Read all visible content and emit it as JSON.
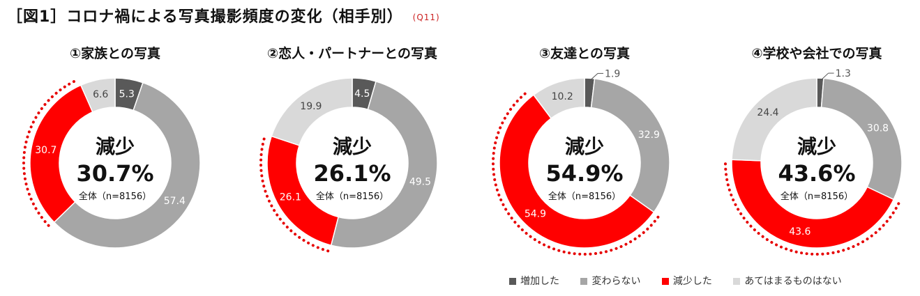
{
  "title": "［図1］コロナ禍による写真撮影頻度の変化（相手別）",
  "question_code": "(Q11)",
  "colors": {
    "increase": "#595959",
    "no_change": "#a6a6a6",
    "decrease": "#ff0000",
    "not_applicable": "#d9d9d9",
    "dots": "#e60000"
  },
  "legend": [
    "増加した",
    "変わらない",
    "減少した",
    "あてはまるものはない"
  ],
  "chart_data": [
    {
      "type": "pie",
      "title": "①家族との写真",
      "categories": [
        "増加した",
        "変わらない",
        "減少した",
        "あてはまるものはない"
      ],
      "values": [
        5.3,
        57.4,
        30.7,
        6.6
      ],
      "center_label": "減少",
      "center_value": "30.7%",
      "base": "全体（n=8156）"
    },
    {
      "type": "pie",
      "title": "②恋人・パートナーとの写真",
      "categories": [
        "増加した",
        "変わらない",
        "減少した",
        "あてはまるものはない"
      ],
      "values": [
        4.5,
        49.5,
        26.1,
        19.9
      ],
      "center_label": "減少",
      "center_value": "26.1%",
      "base": "全体（n=8156）"
    },
    {
      "type": "pie",
      "title": "③友達との写真",
      "categories": [
        "増加した",
        "変わらない",
        "減少した",
        "あてはまるものはない"
      ],
      "values": [
        1.9,
        32.9,
        54.9,
        10.2
      ],
      "center_label": "減少",
      "center_value": "54.9%",
      "base": "全体（n=8156）"
    },
    {
      "type": "pie",
      "title": "④学校や会社での写真",
      "categories": [
        "増加した",
        "変わらない",
        "減少した",
        "あてはまるものはない"
      ],
      "values": [
        1.3,
        30.8,
        43.6,
        24.4
      ],
      "center_label": "減少",
      "center_value": "43.6%",
      "base": "全体（n=8156）"
    }
  ]
}
